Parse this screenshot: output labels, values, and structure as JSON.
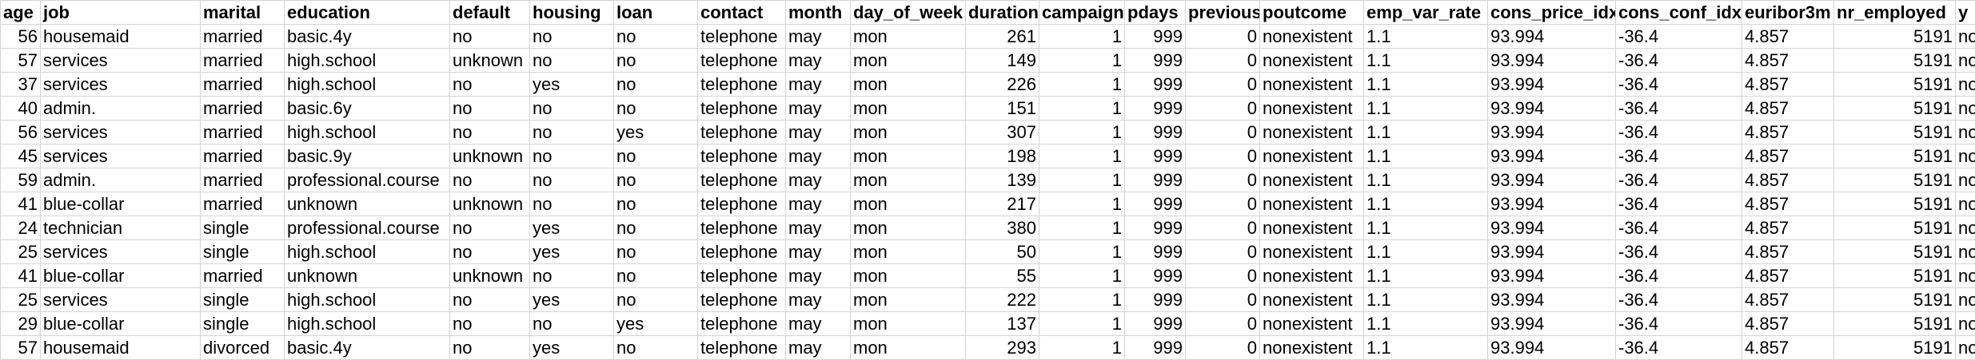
{
  "sheet": {
    "columns": [
      {
        "label": "age",
        "align": "num"
      },
      {
        "label": "job",
        "align": "txt"
      },
      {
        "label": "marital",
        "align": "txt"
      },
      {
        "label": "education",
        "align": "txt"
      },
      {
        "label": "default",
        "align": "txt"
      },
      {
        "label": "housing",
        "align": "txt"
      },
      {
        "label": "loan",
        "align": "txt"
      },
      {
        "label": "contact",
        "align": "txt"
      },
      {
        "label": "month",
        "align": "txt"
      },
      {
        "label": "day_of_week",
        "align": "txt"
      },
      {
        "label": "duration",
        "align": "num"
      },
      {
        "label": "campaign",
        "align": "num"
      },
      {
        "label": "pdays",
        "align": "num"
      },
      {
        "label": "previous",
        "align": "num"
      },
      {
        "label": "poutcome",
        "align": "txt"
      },
      {
        "label": "emp_var_rate",
        "align": "txt"
      },
      {
        "label": "cons_price_idx",
        "align": "txt"
      },
      {
        "label": "cons_conf_idx",
        "align": "txt"
      },
      {
        "label": "euribor3m",
        "align": "txt"
      },
      {
        "label": "nr_employed",
        "align": "num"
      },
      {
        "label": "y",
        "align": "txt"
      }
    ],
    "rows": [
      [
        "56",
        "housemaid",
        "married",
        "basic.4y",
        "no",
        "no",
        "no",
        "telephone",
        "may",
        "mon",
        "261",
        "1",
        "999",
        "0",
        "nonexistent",
        "1.1",
        "93.994",
        "-36.4",
        "4.857",
        "5191",
        "no"
      ],
      [
        "57",
        "services",
        "married",
        "high.school",
        "unknown",
        "no",
        "no",
        "telephone",
        "may",
        "mon",
        "149",
        "1",
        "999",
        "0",
        "nonexistent",
        "1.1",
        "93.994",
        "-36.4",
        "4.857",
        "5191",
        "no"
      ],
      [
        "37",
        "services",
        "married",
        "high.school",
        "no",
        "yes",
        "no",
        "telephone",
        "may",
        "mon",
        "226",
        "1",
        "999",
        "0",
        "nonexistent",
        "1.1",
        "93.994",
        "-36.4",
        "4.857",
        "5191",
        "no"
      ],
      [
        "40",
        "admin.",
        "married",
        "basic.6y",
        "no",
        "no",
        "no",
        "telephone",
        "may",
        "mon",
        "151",
        "1",
        "999",
        "0",
        "nonexistent",
        "1.1",
        "93.994",
        "-36.4",
        "4.857",
        "5191",
        "no"
      ],
      [
        "56",
        "services",
        "married",
        "high.school",
        "no",
        "no",
        "yes",
        "telephone",
        "may",
        "mon",
        "307",
        "1",
        "999",
        "0",
        "nonexistent",
        "1.1",
        "93.994",
        "-36.4",
        "4.857",
        "5191",
        "no"
      ],
      [
        "45",
        "services",
        "married",
        "basic.9y",
        "unknown",
        "no",
        "no",
        "telephone",
        "may",
        "mon",
        "198",
        "1",
        "999",
        "0",
        "nonexistent",
        "1.1",
        "93.994",
        "-36.4",
        "4.857",
        "5191",
        "no"
      ],
      [
        "59",
        "admin.",
        "married",
        "professional.course",
        "no",
        "no",
        "no",
        "telephone",
        "may",
        "mon",
        "139",
        "1",
        "999",
        "0",
        "nonexistent",
        "1.1",
        "93.994",
        "-36.4",
        "4.857",
        "5191",
        "no"
      ],
      [
        "41",
        "blue-collar",
        "married",
        "unknown",
        "unknown",
        "no",
        "no",
        "telephone",
        "may",
        "mon",
        "217",
        "1",
        "999",
        "0",
        "nonexistent",
        "1.1",
        "93.994",
        "-36.4",
        "4.857",
        "5191",
        "no"
      ],
      [
        "24",
        "technician",
        "single",
        "professional.course",
        "no",
        "yes",
        "no",
        "telephone",
        "may",
        "mon",
        "380",
        "1",
        "999",
        "0",
        "nonexistent",
        "1.1",
        "93.994",
        "-36.4",
        "4.857",
        "5191",
        "no"
      ],
      [
        "25",
        "services",
        "single",
        "high.school",
        "no",
        "yes",
        "no",
        "telephone",
        "may",
        "mon",
        "50",
        "1",
        "999",
        "0",
        "nonexistent",
        "1.1",
        "93.994",
        "-36.4",
        "4.857",
        "5191",
        "no"
      ],
      [
        "41",
        "blue-collar",
        "married",
        "unknown",
        "unknown",
        "no",
        "no",
        "telephone",
        "may",
        "mon",
        "55",
        "1",
        "999",
        "0",
        "nonexistent",
        "1.1",
        "93.994",
        "-36.4",
        "4.857",
        "5191",
        "no"
      ],
      [
        "25",
        "services",
        "single",
        "high.school",
        "no",
        "yes",
        "no",
        "telephone",
        "may",
        "mon",
        "222",
        "1",
        "999",
        "0",
        "nonexistent",
        "1.1",
        "93.994",
        "-36.4",
        "4.857",
        "5191",
        "no"
      ],
      [
        "29",
        "blue-collar",
        "single",
        "high.school",
        "no",
        "no",
        "yes",
        "telephone",
        "may",
        "mon",
        "137",
        "1",
        "999",
        "0",
        "nonexistent",
        "1.1",
        "93.994",
        "-36.4",
        "4.857",
        "5191",
        "no"
      ],
      [
        "57",
        "housemaid",
        "divorced",
        "basic.4y",
        "no",
        "yes",
        "no",
        "telephone",
        "may",
        "mon",
        "293",
        "1",
        "999",
        "0",
        "nonexistent",
        "1.1",
        "93.994",
        "-36.4",
        "4.857",
        "5191",
        "no"
      ]
    ]
  }
}
